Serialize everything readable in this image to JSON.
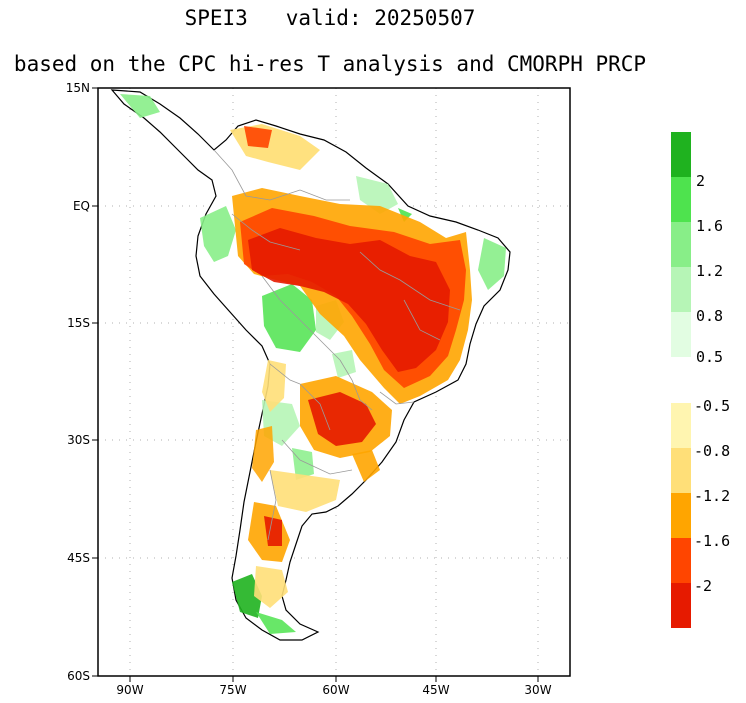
{
  "title": "SPEI3   valid: 20250507",
  "subtitle": "based on the CPC hi-res T analysis and CMORPH PRCP",
  "axes": {
    "lat_labels": [
      "15N",
      "EQ",
      "15S",
      "30S",
      "45S",
      "60S"
    ],
    "lon_labels": [
      "90W",
      "75W",
      "60W",
      "45W",
      "30W"
    ]
  },
  "colorbar_wet": {
    "labels": [
      "2",
      "1.6",
      "1.2",
      "0.8",
      "0.5"
    ],
    "colors": [
      "#1fb21f",
      "#4ee34e",
      "#88ee88",
      "#b6f5b6",
      "#e2fde2"
    ]
  },
  "colorbar_dry": {
    "labels": [
      "-0.5",
      "-0.8",
      "-1.2",
      "-1.6",
      "-2"
    ],
    "colors": [
      "#fff5b0",
      "#ffdf78",
      "#ffa500",
      "#ff4500",
      "#e61a00"
    ]
  },
  "map_colors": {
    "land": "#ffffff",
    "border": "#9a9a9a",
    "coast": "#000000"
  }
}
